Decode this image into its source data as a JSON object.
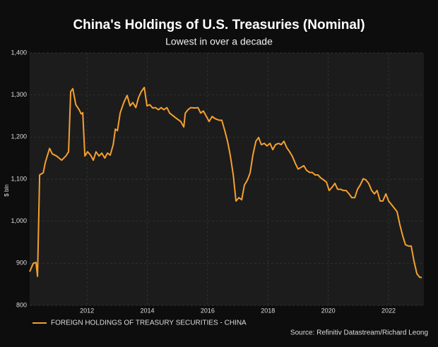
{
  "chart_data": {
    "type": "line",
    "title": "China's Holdings of U.S. Treasuries (Nominal)",
    "subtitle": "Lowest in over a decade",
    "y_label": "$ bln",
    "source": "Source: Refinitiv Datastream/Richard Leong",
    "legend": "bottom-left",
    "grid": true,
    "xlim": [
      2010.1,
      2023.17
    ],
    "xticks": [
      2012,
      2014,
      2016,
      2018,
      2020,
      2022
    ],
    "ylim": [
      800,
      1400
    ],
    "yticks": [
      800,
      900,
      {
        "value": 1000,
        "label": "1,000"
      },
      {
        "value": 1100,
        "label": "1,100"
      },
      {
        "value": 1200,
        "label": "1,200"
      },
      {
        "value": 1300,
        "label": "1,300"
      },
      {
        "value": 1400,
        "label": "1,400"
      }
    ],
    "x": [
      2010.1,
      2010.22,
      2010.31,
      2010.36,
      2010.43,
      2010.55,
      2010.62,
      2010.76,
      2010.85,
      2010.99,
      2011.16,
      2011.3,
      2011.39,
      2011.46,
      2011.53,
      2011.63,
      2011.74,
      2011.81,
      2011.86,
      2011.93,
      2012.02,
      2012.12,
      2012.21,
      2012.3,
      2012.4,
      2012.49,
      2012.59,
      2012.68,
      2012.77,
      2012.87,
      2012.94,
      2013.01,
      2013.1,
      2013.22,
      2013.33,
      2013.43,
      2013.52,
      2013.62,
      2013.71,
      2013.8,
      2013.9,
      2013.99,
      2014.08,
      2014.18,
      2014.27,
      2014.37,
      2014.46,
      2014.55,
      2014.65,
      2014.74,
      2014.83,
      2014.97,
      2015.11,
      2015.21,
      2015.26,
      2015.35,
      2015.44,
      2015.58,
      2015.68,
      2015.77,
      2015.86,
      2015.96,
      2016.05,
      2016.15,
      2016.24,
      2016.38,
      2016.47,
      2016.57,
      2016.66,
      2016.75,
      2016.85,
      2016.94,
      2017.04,
      2017.13,
      2017.22,
      2017.32,
      2017.41,
      2017.5,
      2017.6,
      2017.69,
      2017.78,
      2017.88,
      2017.97,
      2018.07,
      2018.16,
      2018.25,
      2018.35,
      2018.44,
      2018.53,
      2018.63,
      2018.72,
      2018.81,
      2018.91,
      2019.0,
      2019.1,
      2019.19,
      2019.28,
      2019.38,
      2019.47,
      2019.56,
      2019.66,
      2019.75,
      2019.85,
      2019.94,
      2020.03,
      2020.13,
      2020.22,
      2020.31,
      2020.41,
      2020.5,
      2020.59,
      2020.69,
      2020.78,
      2020.88,
      2020.97,
      2021.06,
      2021.16,
      2021.25,
      2021.34,
      2021.44,
      2021.53,
      2021.62,
      2021.72,
      2021.81,
      2021.91,
      2022.0,
      2022.09,
      2022.19,
      2022.28,
      2022.37,
      2022.47,
      2022.56,
      2022.66,
      2022.75,
      2022.84,
      2022.94,
      2023.03,
      2023.1
    ],
    "series": [
      {
        "name": "FOREIGN HOLDINGS OF TREASURY SECURITIES - CHINA",
        "color": "#f5a030",
        "values": [
          880,
          900,
          902,
          869,
          1110,
          1115,
          1140,
          1173,
          1160,
          1155,
          1145,
          1155,
          1165,
          1308,
          1315,
          1277,
          1265,
          1255,
          1258,
          1155,
          1165,
          1157,
          1145,
          1165,
          1155,
          1162,
          1150,
          1162,
          1157,
          1182,
          1219,
          1215,
          1257,
          1282,
          1299,
          1274,
          1282,
          1270,
          1294,
          1308,
          1318,
          1274,
          1277,
          1269,
          1270,
          1265,
          1270,
          1265,
          1270,
          1257,
          1252,
          1244,
          1237,
          1224,
          1257,
          1265,
          1270,
          1269,
          1270,
          1257,
          1262,
          1249,
          1237,
          1249,
          1244,
          1240,
          1240,
          1215,
          1190,
          1157,
          1110,
          1048,
          1056,
          1051,
          1086,
          1098,
          1115,
          1157,
          1190,
          1199,
          1182,
          1185,
          1179,
          1185,
          1170,
          1182,
          1185,
          1182,
          1190,
          1174,
          1165,
          1154,
          1137,
          1124,
          1128,
          1132,
          1121,
          1116,
          1116,
          1110,
          1110,
          1103,
          1098,
          1093,
          1073,
          1081,
          1090,
          1076,
          1076,
          1073,
          1073,
          1065,
          1056,
          1056,
          1076,
          1086,
          1101,
          1098,
          1090,
          1073,
          1065,
          1073,
          1048,
          1048,
          1065,
          1048,
          1040,
          1031,
          1023,
          993,
          965,
          944,
          941,
          941,
          906,
          875,
          867,
          866
        ]
      }
    ]
  }
}
